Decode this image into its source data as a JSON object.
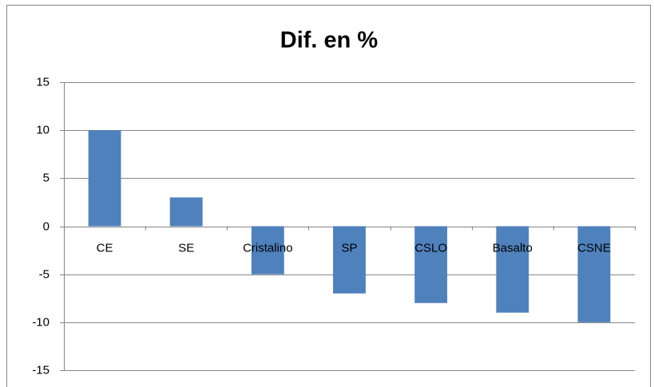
{
  "chart_data": {
    "type": "bar",
    "title": "Dif. en %",
    "categories": [
      "CE",
      "SE",
      "Cristalino",
      "SP",
      "CSLO",
      "Basalto",
      "CSNE"
    ],
    "values": [
      10,
      3,
      -5,
      -7,
      -8,
      -9,
      -10
    ],
    "color": "#4f81bd",
    "ylim": [
      -15,
      15
    ],
    "yticks": [
      -15,
      -10,
      -5,
      0,
      5,
      10,
      15
    ],
    "grid": true
  }
}
